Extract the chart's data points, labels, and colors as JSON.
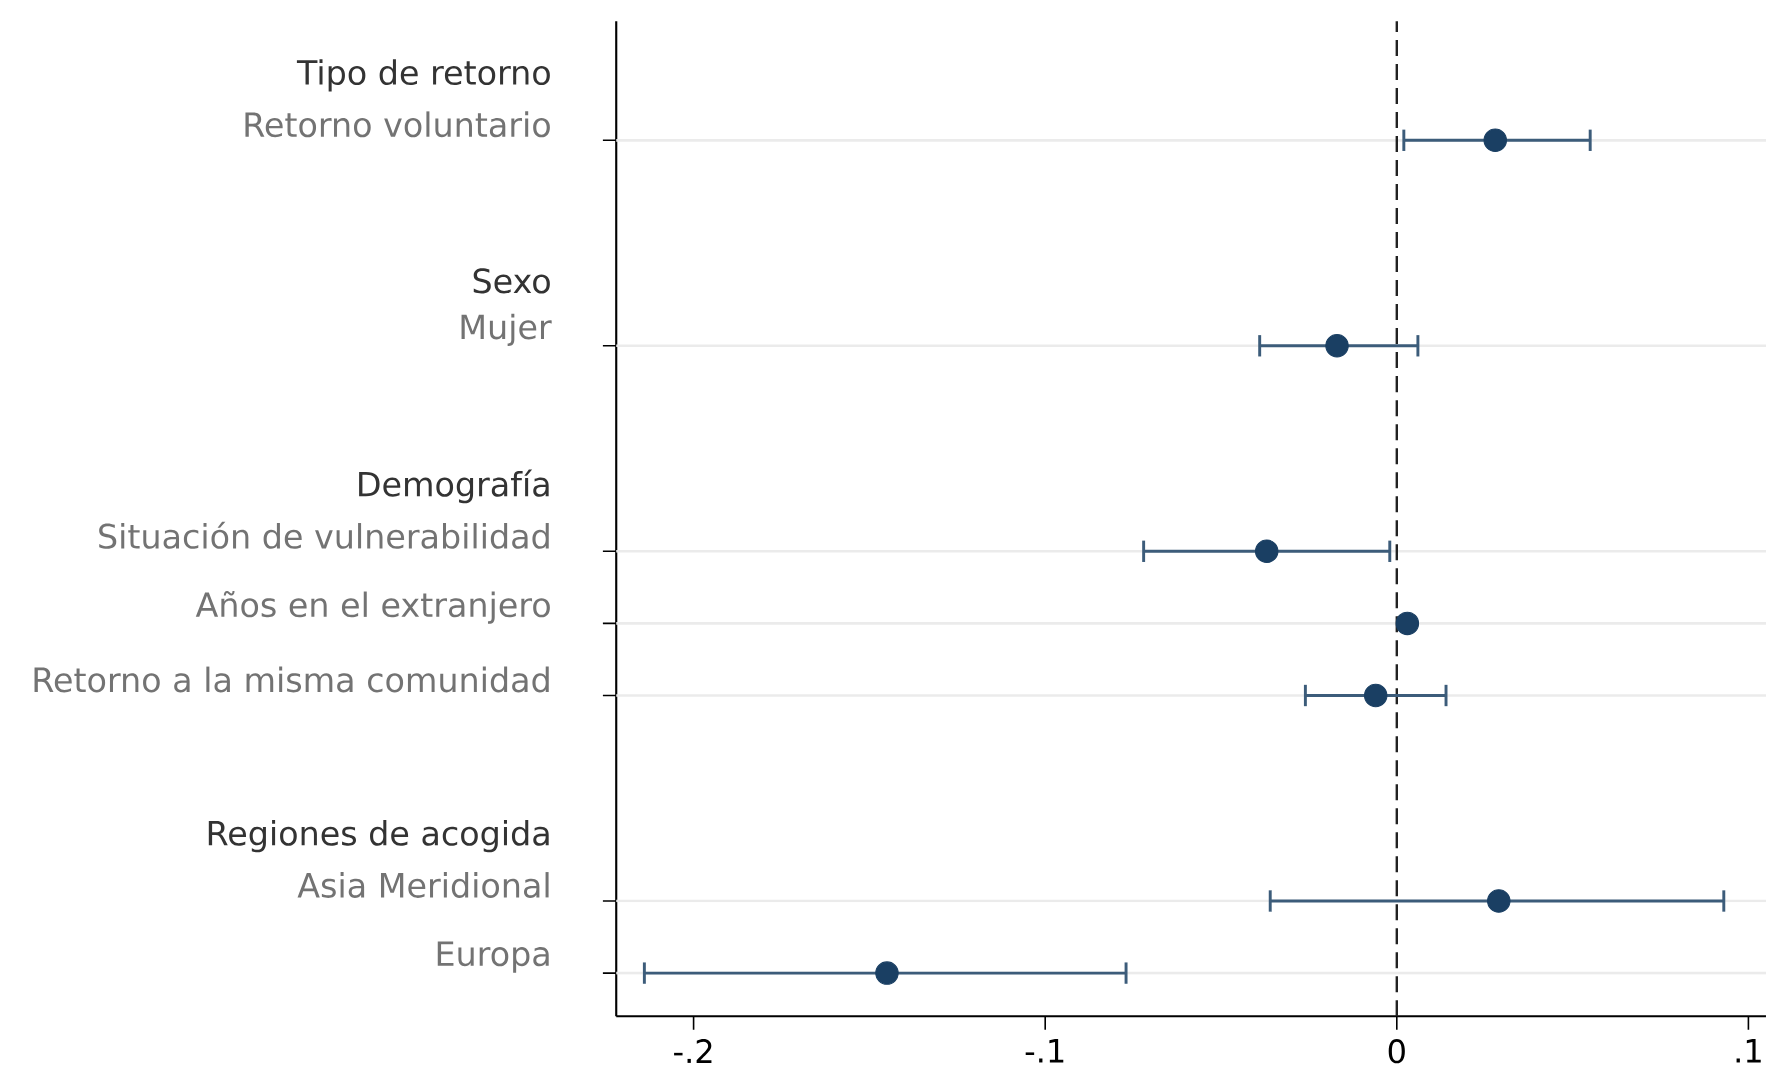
{
  "chart_data": {
    "type": "scatter",
    "orientation": "horizontal",
    "categories": [
      "Tipo de retorno",
      "Retorno voluntario",
      "Sexo",
      "Mujer",
      "Demografía",
      "Situación de vulnerabilidad",
      "Años en el extranjero",
      "Retorno a la misma comunidad",
      "Regiones de acogida",
      "Asia Meridional",
      "Europa"
    ],
    "values": [
      null,
      0.028,
      null,
      -0.017,
      null,
      -0.037,
      0.003,
      -0.006,
      null,
      0.029,
      -0.145
    ],
    "errors": [
      null,
      [
        0.002,
        0.055
      ],
      null,
      [
        -0.039,
        0.006
      ],
      null,
      [
        -0.072,
        -0.002
      ],
      null,
      [
        -0.026,
        0.014
      ],
      null,
      [
        -0.036,
        0.093
      ],
      [
        -0.214,
        -0.077
      ]
    ],
    "color": "#1a3f63",
    "marker": "circle",
    "grid": "y",
    "xlim": [
      -0.222,
      0.105
    ],
    "xticks": [
      {
        "value": -0.2,
        "label": "-.2"
      },
      {
        "value": -0.1,
        "label": "-.1"
      },
      {
        "value": 0,
        "label": "0"
      },
      {
        "value": 0.1,
        "label": ".1"
      }
    ],
    "ref_lines": [
      {
        "axis": "x",
        "value": 0,
        "color": "#222222",
        "line_style": "dashed"
      }
    ]
  }
}
